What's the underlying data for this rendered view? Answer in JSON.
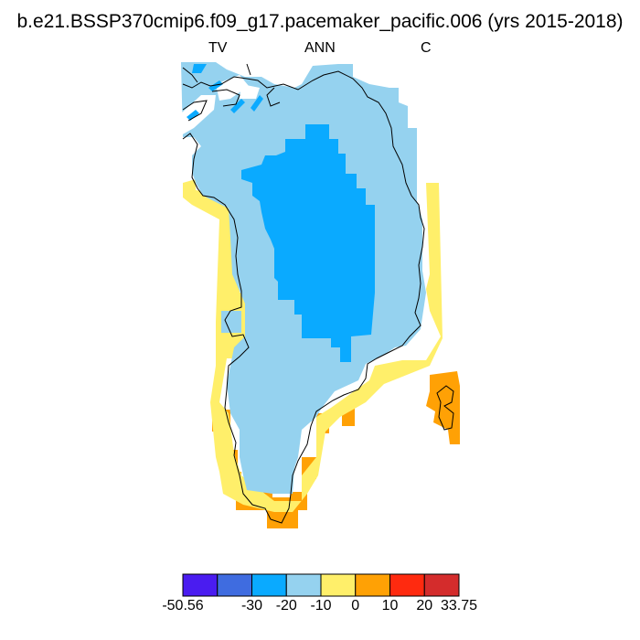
{
  "title": "b.e21.BSSP370cmip6.f09_g17.pacemaker_pacific.006 (yrs 2015-2018)",
  "subtitle_left": "TV",
  "subtitle_center": "ANN",
  "subtitle_right": "C",
  "colorbar": {
    "colors": [
      "#4a1cf0",
      "#3f6ce0",
      "#0aaaff",
      "#95d2ef",
      "#ffef6a",
      "#ffa105",
      "#ff2a0f",
      "#d42c2c"
    ],
    "tick_labels": [
      "-50.56",
      "-30",
      "-20",
      "-10",
      "0",
      "10",
      "20",
      "33.75"
    ]
  },
  "chart_data": {
    "type": "map",
    "region": "Greenland",
    "variable": "TV",
    "period": "ANN",
    "units": "C",
    "levels": [
      -50.56,
      -40,
      -30,
      -20,
      -10,
      0,
      10,
      20,
      33.75
    ],
    "fields": [
      {
        "range": [
          -30,
          -20
        ],
        "color": "#0aaaff",
        "area": "ice sheet interior"
      },
      {
        "range": [
          -20,
          -10
        ],
        "color": "#95d2ef",
        "area": "ice sheet margins"
      },
      {
        "range": [
          -10,
          0
        ],
        "color": "#ffef6a",
        "area": "west and southeast coast"
      },
      {
        "range": [
          0,
          10
        ],
        "color": "#ffa105",
        "area": "southern tip and east coast fragment"
      }
    ]
  }
}
